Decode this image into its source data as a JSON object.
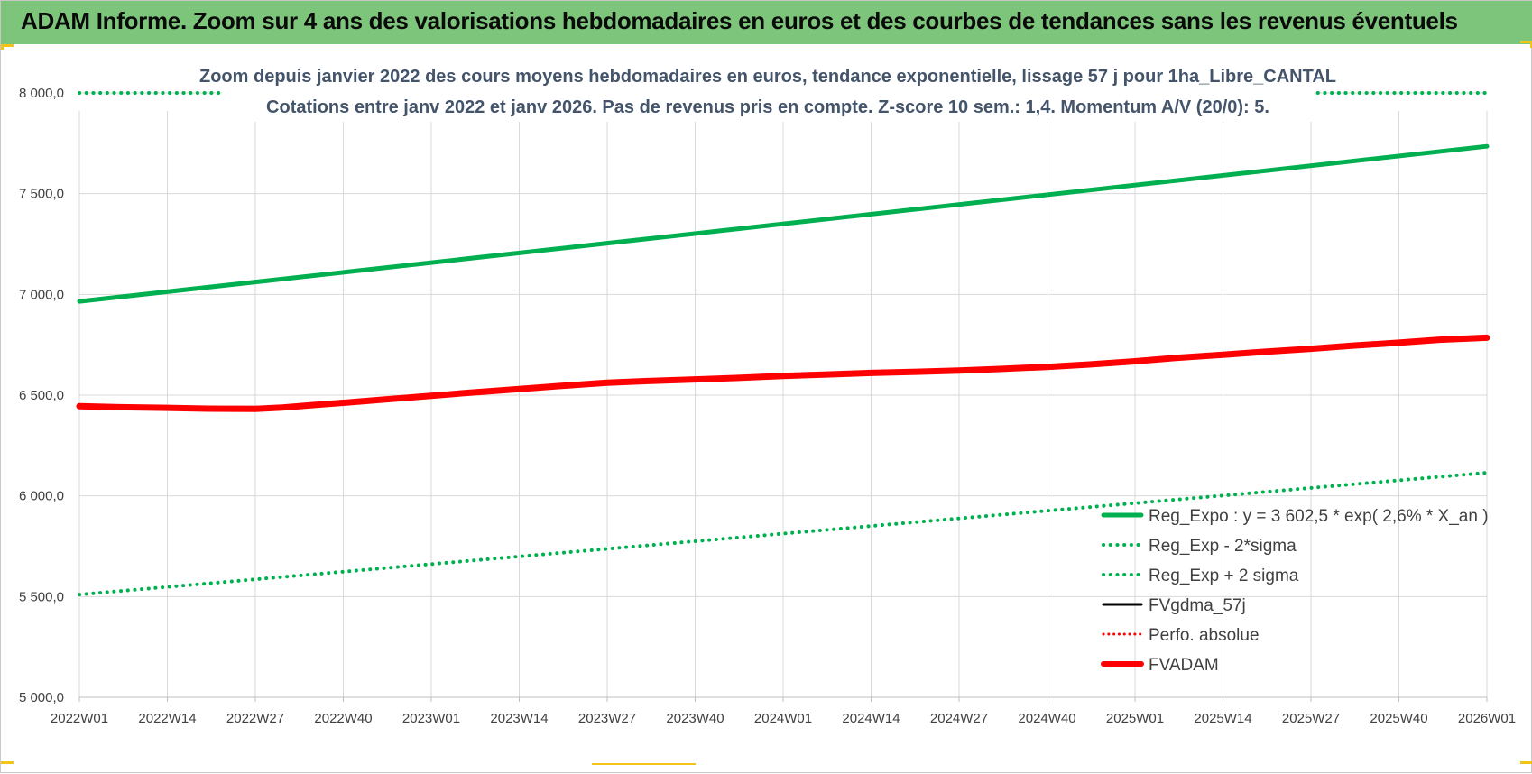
{
  "banner": {
    "title": "ADAM Informe. Zoom sur 4 ans des valorisations hebdomadaires en euros et des courbes de tendances sans les revenus éventuels",
    "background_color": "#7dc57a",
    "corner_color": "#f2c418"
  },
  "chart_data": {
    "type": "line",
    "title_lines": [
      "Zoom depuis janvier 2022 des cours moyens hebdomadaires en euros, tendance exponentielle, lissage 57 j pour 1ha_Libre_CANTAL",
      "Cotations entre janv 2022 et janv 2026. Pas de revenus pris en compte. Z-score 10 sem.: 1,4. Momentum A/V (20/0): 5."
    ],
    "x_tick_labels": [
      "2022W01",
      "2022W14",
      "2022W27",
      "2022W40",
      "2023W01",
      "2023W14",
      "2023W27",
      "2023W40",
      "2024W01",
      "2024W14",
      "2024W27",
      "2024W40",
      "2025W01",
      "2025W14",
      "2025W27",
      "2025W40",
      "2026W01"
    ],
    "y_tick_labels": [
      "5 000,0",
      "5 500,0",
      "6 000,0",
      "6 500,0",
      "7 000,0",
      "7 500,0",
      "8 000,0"
    ],
    "ylim": [
      5000,
      8000
    ],
    "ystep": 500,
    "x_tick_count": 17,
    "weeks_total": 208,
    "grid": true,
    "legend_position": "right",
    "series": [
      {
        "name": "Reg_Expo : y = 3 602,5 * exp( 2,6% *  X_an )",
        "color": "#00b050",
        "style": "solid",
        "width": 5,
        "points": [
          [
            0,
            6965
          ],
          [
            208,
            7735
          ]
        ]
      },
      {
        "name": "Reg_Exp - 2*sigma",
        "color": "#00b050",
        "style": "dotted",
        "width": 4,
        "points": [
          [
            0,
            5510
          ],
          [
            208,
            6115
          ]
        ]
      },
      {
        "name": "Reg_Exp + 2 sigma",
        "color": "#00b050",
        "style": "dotted",
        "width": 4,
        "points": [
          [
            0,
            8000
          ],
          [
            208,
            8000
          ]
        ],
        "segments": [
          [
            0,
            21
          ],
          [
            182,
            208
          ]
        ]
      },
      {
        "name": "FVgdma_57j",
        "color": "#000000",
        "style": "solid",
        "width": 3,
        "points": [
          [
            22,
            6440
          ],
          [
            27,
            6440
          ],
          [
            32,
            6440
          ]
        ]
      },
      {
        "name": "Perfo. absolue",
        "color": "#ff0000",
        "style": "dotted",
        "width": 3,
        "points": []
      },
      {
        "name": "FVADAM",
        "color": "#ff0000",
        "style": "solid",
        "width": 7,
        "points": [
          [
            0,
            6445
          ],
          [
            6,
            6440
          ],
          [
            13,
            6437
          ],
          [
            19,
            6433
          ],
          [
            26,
            6432
          ],
          [
            30,
            6438
          ],
          [
            35,
            6452
          ],
          [
            39,
            6462
          ],
          [
            45,
            6478
          ],
          [
            52,
            6497
          ],
          [
            58,
            6513
          ],
          [
            65,
            6530
          ],
          [
            71,
            6545
          ],
          [
            78,
            6562
          ],
          [
            84,
            6570
          ],
          [
            91,
            6578
          ],
          [
            97,
            6585
          ],
          [
            104,
            6595
          ],
          [
            110,
            6602
          ],
          [
            117,
            6610
          ],
          [
            123,
            6615
          ],
          [
            130,
            6622
          ],
          [
            136,
            6630
          ],
          [
            143,
            6640
          ],
          [
            149,
            6652
          ],
          [
            156,
            6668
          ],
          [
            162,
            6685
          ],
          [
            169,
            6700
          ],
          [
            175,
            6715
          ],
          [
            182,
            6730
          ],
          [
            188,
            6745
          ],
          [
            195,
            6760
          ],
          [
            201,
            6775
          ],
          [
            208,
            6785
          ]
        ]
      }
    ]
  }
}
